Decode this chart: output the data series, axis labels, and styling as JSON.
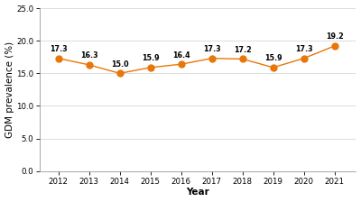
{
  "years": [
    2012,
    2013,
    2014,
    2015,
    2016,
    2017,
    2018,
    2019,
    2020,
    2021
  ],
  "values": [
    17.3,
    16.3,
    15.0,
    15.9,
    16.4,
    17.3,
    17.2,
    15.9,
    17.3,
    19.2
  ],
  "line_color": "#E8770A",
  "marker_color": "#E8770A",
  "ylabel": "GDM prevalence (%)",
  "xlabel": "Year",
  "ylim": [
    0,
    25
  ],
  "yticks": [
    0.0,
    5.0,
    10.0,
    15.0,
    20.0,
    25.0
  ],
  "ytick_labels": [
    "0.0",
    "5.0",
    "10.0",
    "15.0",
    "20.0",
    "25.0"
  ],
  "annotation_fontsize": 5.8,
  "axis_label_fontsize": 7.5,
  "tick_fontsize": 6.2,
  "xlim_left": 2011.4,
  "xlim_right": 2021.7
}
